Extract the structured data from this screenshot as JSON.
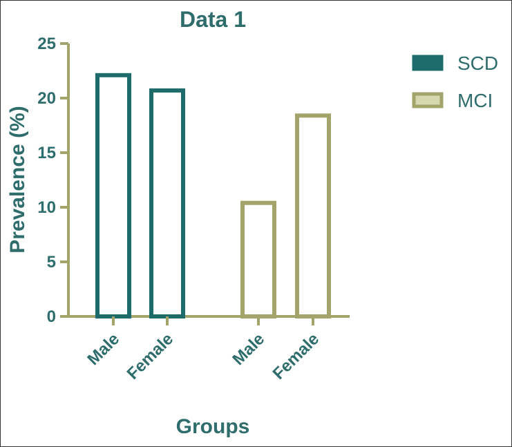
{
  "chart_data": {
    "type": "bar",
    "title": "Data 1",
    "xlabel": "Groups",
    "ylabel": "Prevalence (%)",
    "ylim": [
      0,
      25
    ],
    "yticks": [
      "0",
      "5",
      "10",
      "15",
      "20",
      "25"
    ],
    "grid": false,
    "legend_position": "right",
    "bars": [
      {
        "category": "Male",
        "series": "SCD",
        "value": 22.1
      },
      {
        "category": "Female",
        "series": "SCD",
        "value": 20.7
      },
      {
        "category": "Male",
        "series": "MCI",
        "value": 10.4
      },
      {
        "category": "Female",
        "series": "MCI",
        "value": 18.4
      }
    ],
    "series": [
      {
        "name": "SCD",
        "color": "#1e6b6b",
        "legend_fill": "#1e6b6b"
      },
      {
        "name": "MCI",
        "color": "#a3a46b",
        "legend_fill": "#d6d9b0"
      }
    ],
    "colors": {
      "text": "#2f6c6c",
      "axis": "#a3a46b"
    }
  }
}
